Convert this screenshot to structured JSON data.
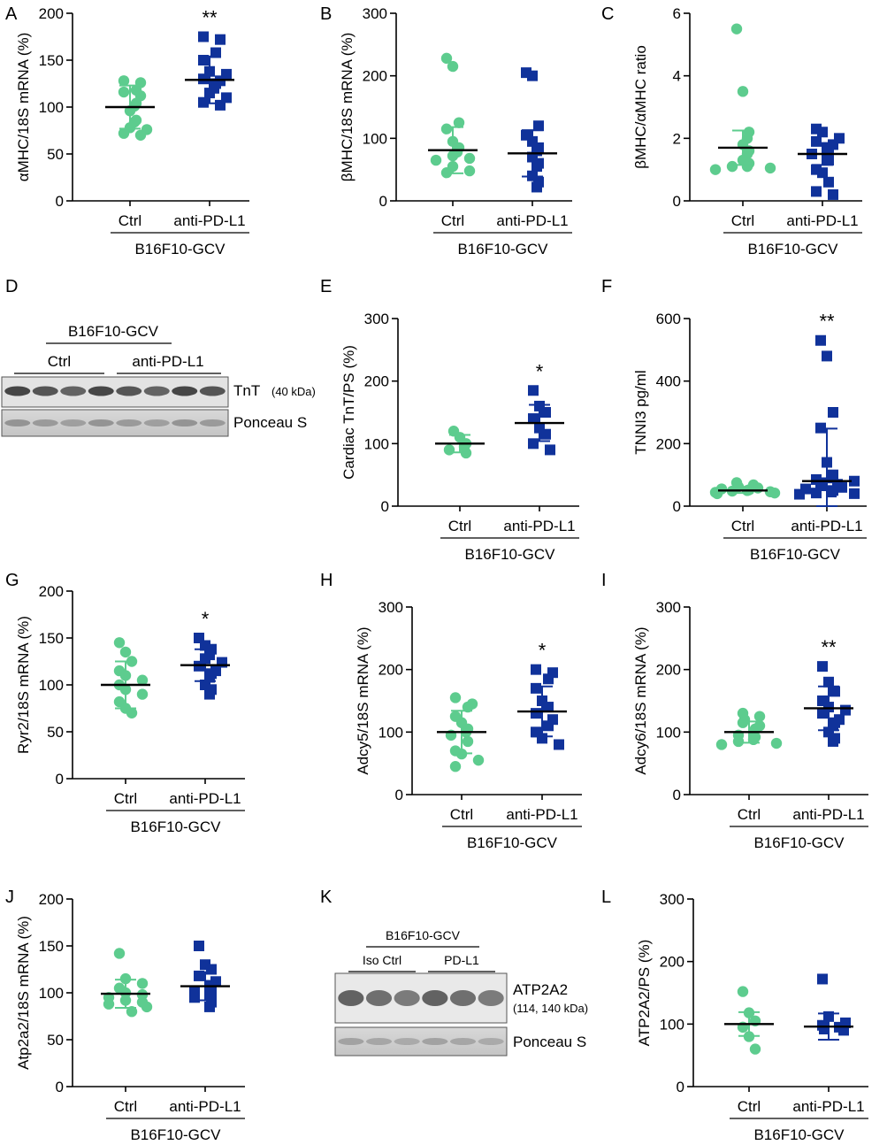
{
  "colors": {
    "ctrl": "#5dcc8e",
    "treat": "#10329a",
    "axis": "#000000"
  },
  "chart_data": [
    {
      "id": "A",
      "type": "scatter",
      "panel_label": "A",
      "ylabel": "αMHC/18S mRNA (%)",
      "ylim": [
        0,
        200
      ],
      "yticks": [
        0,
        50,
        100,
        150,
        200
      ],
      "categories": [
        "Ctrl",
        "anti-PD-L1"
      ],
      "group_label": "B16F10-GCV",
      "significance": "**",
      "series": [
        {
          "name": "Ctrl",
          "marker": "circle",
          "values": [
            128,
            126,
            118,
            116,
            112,
            104,
            101,
            96,
            86,
            84,
            78,
            76,
            72,
            70
          ],
          "mean": 100,
          "sd": 23
        },
        {
          "name": "anti-PD-L1",
          "marker": "square",
          "values": [
            175,
            172,
            158,
            150,
            138,
            135,
            130,
            128,
            125,
            120,
            115,
            110,
            105,
            102
          ],
          "mean": 129,
          "sd": 25
        }
      ]
    },
    {
      "id": "B",
      "type": "scatter",
      "panel_label": "B",
      "ylabel": "βMHC/18S mRNA (%)",
      "ylim": [
        0,
        300
      ],
      "yticks": [
        0,
        100,
        200,
        300
      ],
      "categories": [
        "Ctrl",
        "anti-PD-L1"
      ],
      "group_label": "B16F10-GCV",
      "series": [
        {
          "name": "Ctrl",
          "marker": "circle",
          "values": [
            228,
            215,
            125,
            115,
            95,
            85,
            78,
            72,
            68,
            65,
            55,
            48,
            45
          ],
          "mean": 81,
          "sd": 37
        },
        {
          "name": "anti-PD-L1",
          "marker": "square",
          "values": [
            205,
            200,
            120,
            105,
            95,
            85,
            80,
            70,
            60,
            55,
            40,
            30,
            22
          ],
          "mean": 76,
          "sd": 37
        }
      ]
    },
    {
      "id": "C",
      "type": "scatter",
      "panel_label": "C",
      "ylabel": "βMHC/αMHC ratio",
      "ylim": [
        0,
        6
      ],
      "yticks": [
        0,
        2,
        4,
        6
      ],
      "categories": [
        "Ctrl",
        "anti-PD-L1"
      ],
      "group_label": "B16F10-GCV",
      "series": [
        {
          "name": "Ctrl",
          "marker": "circle",
          "values": [
            5.5,
            3.5,
            2.2,
            2.0,
            1.8,
            1.6,
            1.5,
            1.3,
            1.2,
            1.1,
            1.1,
            1.05,
            1.0
          ],
          "mean": 1.7,
          "sd": 0.55
        },
        {
          "name": "anti-PD-L1",
          "marker": "square",
          "values": [
            2.3,
            2.2,
            2.0,
            1.9,
            1.8,
            1.7,
            1.6,
            1.5,
            1.3,
            1.0,
            0.9,
            0.6,
            0.3,
            0.2
          ],
          "mean": 1.5,
          "sd": 0.35
        }
      ]
    },
    {
      "id": "E",
      "type": "scatter",
      "panel_label": "E",
      "ylabel": "Cardiac TnT/PS (%)",
      "ylim": [
        0,
        300
      ],
      "yticks": [
        0,
        100,
        200,
        300
      ],
      "categories": [
        "Ctrl",
        "anti-PD-L1"
      ],
      "group_label": "B16F10-GCV",
      "significance": "*",
      "series": [
        {
          "name": "Ctrl",
          "marker": "circle",
          "values": [
            120,
            110,
            100,
            95,
            90,
            85
          ],
          "mean": 100,
          "sd": 14
        },
        {
          "name": "anti-PD-L1",
          "marker": "square",
          "values": [
            185,
            160,
            150,
            140,
            125,
            115,
            100,
            90
          ],
          "mean": 133,
          "sd": 29
        }
      ]
    },
    {
      "id": "F",
      "type": "scatter",
      "panel_label": "F",
      "ylabel": "TNNI3 pg/ml",
      "ylim": [
        0,
        600
      ],
      "yticks": [
        0,
        200,
        400,
        600
      ],
      "categories": [
        "Ctrl",
        "anti-PD-L1"
      ],
      "group_label": "B16F10-GCV",
      "significance": "**",
      "series": [
        {
          "name": "Ctrl",
          "marker": "circle",
          "values": [
            75,
            68,
            62,
            58,
            55,
            52,
            50,
            48,
            46,
            44,
            42,
            40
          ],
          "mean": 50,
          "sd": 8
        },
        {
          "name": "anti-PD-L1",
          "marker": "square",
          "values": [
            530,
            480,
            300,
            250,
            140,
            100,
            90,
            85,
            80,
            75,
            70,
            65,
            60,
            55,
            50,
            45,
            42,
            40,
            38
          ],
          "mean": 80,
          "sd": 168
        }
      ]
    },
    {
      "id": "G",
      "type": "scatter",
      "panel_label": "G",
      "ylabel": "Ryr2/18S mRNA (%)",
      "ylim": [
        0,
        200
      ],
      "yticks": [
        0,
        50,
        100,
        150,
        200
      ],
      "categories": [
        "Ctrl",
        "anti-PD-L1"
      ],
      "group_label": "B16F10-GCV",
      "significance": "*",
      "series": [
        {
          "name": "Ctrl",
          "marker": "circle",
          "values": [
            145,
            135,
            125,
            115,
            110,
            105,
            100,
            95,
            90,
            82,
            75,
            70
          ],
          "mean": 100,
          "sd": 25
        },
        {
          "name": "anti-PD-L1",
          "marker": "square",
          "values": [
            150,
            142,
            138,
            132,
            128,
            124,
            120,
            115,
            112,
            108,
            100,
            95,
            90
          ],
          "mean": 121,
          "sd": 17
        }
      ]
    },
    {
      "id": "H",
      "type": "scatter",
      "panel_label": "H",
      "ylabel": "Adcy5/18S mRNA (%)",
      "ylim": [
        0,
        300
      ],
      "yticks": [
        0,
        100,
        200,
        300
      ],
      "categories": [
        "Ctrl",
        "anti-PD-L1"
      ],
      "group_label": "B16F10-GCV",
      "significance": "*",
      "series": [
        {
          "name": "Ctrl",
          "marker": "circle",
          "values": [
            155,
            145,
            140,
            125,
            115,
            105,
            100,
            95,
            85,
            70,
            65,
            55,
            45
          ],
          "mean": 100,
          "sd": 34
        },
        {
          "name": "anti-PD-L1",
          "marker": "square",
          "values": [
            200,
            195,
            185,
            170,
            150,
            140,
            130,
            120,
            110,
            100,
            90,
            80
          ],
          "mean": 133,
          "sd": 40
        }
      ]
    },
    {
      "id": "I",
      "type": "scatter",
      "panel_label": "I",
      "ylabel": "Adcy6/18S mRNA (%)",
      "ylim": [
        0,
        300
      ],
      "yticks": [
        0,
        100,
        200,
        300
      ],
      "categories": [
        "Ctrl",
        "anti-PD-L1"
      ],
      "group_label": "B16F10-GCV",
      "significance": "**",
      "series": [
        {
          "name": "Ctrl",
          "marker": "circle",
          "values": [
            130,
            125,
            120,
            115,
            110,
            105,
            100,
            95,
            92,
            88,
            85,
            82,
            80
          ],
          "mean": 100,
          "sd": 17
        },
        {
          "name": "anti-PD-L1",
          "marker": "square",
          "values": [
            205,
            180,
            165,
            150,
            140,
            135,
            130,
            120,
            115,
            110,
            100,
            90,
            85
          ],
          "mean": 138,
          "sd": 35
        }
      ]
    },
    {
      "id": "J",
      "type": "scatter",
      "panel_label": "J",
      "ylabel": "Atp2a2/18S mRNA (%)",
      "ylim": [
        0,
        200
      ],
      "yticks": [
        0,
        50,
        100,
        150,
        200
      ],
      "categories": [
        "Ctrl",
        "anti-PD-L1"
      ],
      "group_label": "B16F10-GCV",
      "series": [
        {
          "name": "Ctrl",
          "marker": "circle",
          "values": [
            142,
            115,
            110,
            105,
            100,
            98,
            95,
            92,
            90,
            88,
            85,
            80
          ],
          "mean": 99,
          "sd": 15
        },
        {
          "name": "anti-PD-L1",
          "marker": "square",
          "values": [
            150,
            130,
            125,
            118,
            112,
            108,
            105,
            102,
            100,
            98,
            95,
            90,
            85
          ],
          "mean": 107,
          "sd": 15
        }
      ]
    },
    {
      "id": "L",
      "type": "scatter",
      "panel_label": "L",
      "ylabel": "ATP2A2/PS (%)",
      "ylim": [
        0,
        300
      ],
      "yticks": [
        0,
        100,
        200,
        300
      ],
      "categories": [
        "Ctrl",
        "anti-PD-L1"
      ],
      "group_label": "B16F10-GCV",
      "series": [
        {
          "name": "Ctrl",
          "marker": "circle",
          "values": [
            152,
            118,
            105,
            95,
            80,
            60
          ],
          "mean": 100,
          "sd": 19
        },
        {
          "name": "anti-PD-L1",
          "marker": "square",
          "values": [
            172,
            112,
            102,
            98,
            95,
            92,
            90
          ],
          "mean": 96,
          "sd": 21
        }
      ]
    }
  ],
  "blots": [
    {
      "id": "D",
      "panel_label": "D",
      "group_label": "B16F10-GCV",
      "lane_groups": [
        "Ctrl",
        "anti-PD-L1"
      ],
      "rows": [
        {
          "label": "TnT",
          "detail": "(40 kDa)"
        },
        {
          "label": "Ponceau S",
          "detail": ""
        }
      ]
    },
    {
      "id": "K",
      "panel_label": "K",
      "group_label": "B16F10-GCV",
      "lane_groups": [
        "Iso Ctrl",
        "PD-L1"
      ],
      "rows": [
        {
          "label": "ATP2A2",
          "detail": "(114, 140 kDa)"
        },
        {
          "label": "Ponceau S",
          "detail": ""
        }
      ]
    }
  ]
}
